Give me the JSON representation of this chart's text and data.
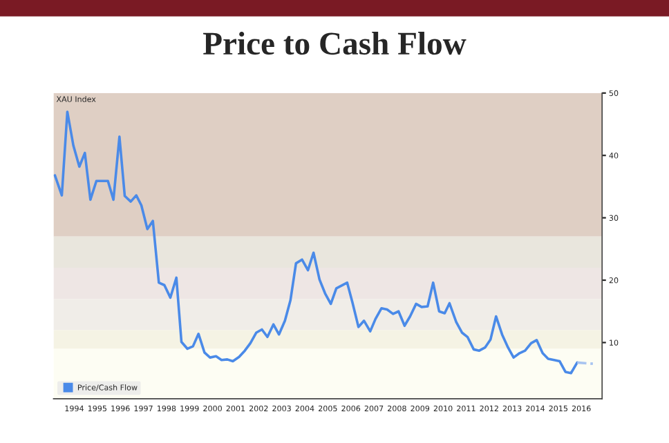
{
  "chart_data": {
    "type": "line",
    "title": "Price to Cash Flow",
    "annotations": [
      "XAU Index"
    ],
    "x": [
      1993.66,
      1993.96,
      1994.2,
      1994.46,
      1994.72,
      1994.96,
      1995.2,
      1995.46,
      1995.96,
      1996.2,
      1996.46,
      1996.69,
      1996.95,
      1997.19,
      1997.41,
      1997.67,
      1997.91,
      1998.17,
      1998.41,
      1998.67,
      1998.93,
      1999.15,
      1999.41,
      1999.65,
      1999.89,
      2000.15,
      2000.39,
      2000.65,
      2000.89,
      2001.14,
      2001.38,
      2001.65,
      2001.9,
      2002.14,
      2002.4,
      2002.64,
      2002.88,
      2003.14,
      2003.38,
      2003.64,
      2003.88,
      2004.12,
      2004.38,
      2004.64,
      2004.88,
      2005.14,
      2005.38,
      2005.63,
      2005.87,
      2006.34,
      2006.57,
      2006.83,
      2007.07,
      2007.34,
      2007.57,
      2007.83,
      2008.07,
      2008.33,
      2008.57,
      2008.83,
      2009.07,
      2009.33,
      2009.57,
      2009.83,
      2010.07,
      2010.33,
      2010.57,
      2010.78,
      2011.07,
      2011.32,
      2011.56,
      2011.83,
      2012.07,
      2012.32,
      2012.56,
      2012.8,
      2013.06,
      2013.32,
      2013.56,
      2013.82,
      2014.06,
      2014.32,
      2014.56,
      2014.82,
      2015.06,
      2015.32,
      2015.56,
      2015.81,
      2016.05,
      2016.32
    ],
    "series": [
      {
        "name": "Price/Cash Flow",
        "color": "#4a8ae8",
        "line_style": "solid",
        "values": [
          36.8,
          33.6,
          47.0,
          41.6,
          38.2,
          40.4,
          32.9,
          35.9,
          35.9,
          32.9,
          43.0,
          33.5,
          32.6,
          33.6,
          32.0,
          28.2,
          29.5,
          19.6,
          19.2,
          17.2,
          20.4,
          10.1,
          9.0,
          9.4,
          11.4,
          8.4,
          7.6,
          7.8,
          7.2,
          7.3,
          7.0,
          7.7,
          8.7,
          9.9,
          11.6,
          12.1,
          10.9,
          12.9,
          11.3,
          13.5,
          16.8,
          22.7,
          23.3,
          21.6,
          24.4,
          20.1,
          17.9,
          16.2,
          18.7,
          19.6,
          16.4,
          12.5,
          13.5,
          11.8,
          13.8,
          15.5,
          15.3,
          14.6,
          15.0,
          12.7,
          14.2,
          16.2,
          15.7,
          15.8,
          19.6,
          15.0,
          14.7,
          16.3,
          13.3,
          11.6,
          10.9,
          8.9,
          8.7,
          9.2,
          10.5,
          14.2,
          11.3,
          9.2,
          7.6,
          8.3,
          8.7,
          9.9,
          10.4,
          8.3,
          7.4,
          7.2,
          7.0,
          5.3,
          5.1,
          6.8
        ]
      },
      {
        "color": "#a8c4f0",
        "line_style": "dashed",
        "x": [
          2016.32,
          2017.0
        ],
        "values": [
          6.8,
          6.6
        ]
      }
    ],
    "xlim": [
      1993.6,
      2017.4
    ],
    "xticks": [
      {
        "value": 1994.5,
        "label": "1994"
      },
      {
        "value": 1995.5,
        "label": "1995"
      },
      {
        "value": 1996.5,
        "label": "1996"
      },
      {
        "value": 1997.5,
        "label": "1997"
      },
      {
        "value": 1998.5,
        "label": "1998"
      },
      {
        "value": 1999.5,
        "label": "1999"
      },
      {
        "value": 2000.5,
        "label": "2000"
      },
      {
        "value": 2001.5,
        "label": "2001"
      },
      {
        "value": 2002.5,
        "label": "2002"
      },
      {
        "value": 2003.5,
        "label": "2003"
      },
      {
        "value": 2004.5,
        "label": "2004"
      },
      {
        "value": 2005.5,
        "label": "2005"
      },
      {
        "value": 2006.5,
        "label": "2006"
      },
      {
        "value": 2007.5,
        "label": "2007"
      },
      {
        "value": 2008.5,
        "label": "2008"
      },
      {
        "value": 2009.5,
        "label": "2009"
      },
      {
        "value": 2010.5,
        "label": "2010"
      },
      {
        "value": 2011.5,
        "label": "2011"
      },
      {
        "value": 2012.5,
        "label": "2012"
      },
      {
        "value": 2013.5,
        "label": "2013"
      },
      {
        "value": 2014.5,
        "label": "2014"
      },
      {
        "value": 2015.5,
        "label": "2015"
      },
      {
        "value": 2016.5,
        "label": "2016"
      }
    ],
    "ylim": [
      1,
      50
    ],
    "yticks": [
      10,
      20,
      30,
      40,
      50
    ],
    "bands": [
      {
        "axis": "y",
        "from": 27,
        "to": 50,
        "color": "#dfcfc4"
      },
      {
        "axis": "y",
        "from": 22,
        "to": 27,
        "color": "#e9e6dd"
      },
      {
        "axis": "y",
        "from": 17,
        "to": 22,
        "color": "#eee6e4"
      },
      {
        "axis": "y",
        "from": 12,
        "to": 17,
        "color": "#f0ede8"
      },
      {
        "axis": "y",
        "from": 9,
        "to": 12,
        "color": "#f5f3e4"
      },
      {
        "axis": "y",
        "from": 1,
        "to": 9,
        "color": "#fdfdf3"
      }
    ],
    "grid": false,
    "legend": "bottom left"
  }
}
